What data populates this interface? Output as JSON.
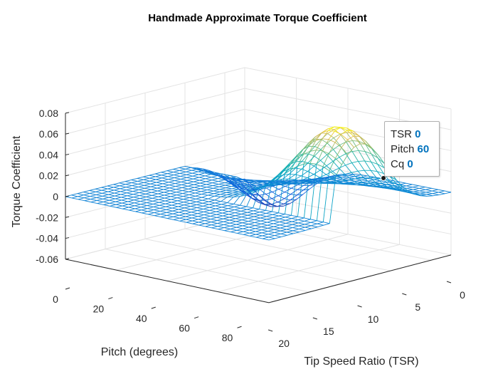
{
  "chart_data": {
    "type": "surface",
    "title": "Handmade Approximate Torque Coefficient",
    "xlabel": "Tip Speed Ratio (TSR)",
    "ylabel": "Pitch (degrees)",
    "zlabel": "Torque Coefficient",
    "x_ticks": [
      "0",
      "5",
      "10",
      "15",
      "20"
    ],
    "y_ticks": [
      "0",
      "20",
      "40",
      "60",
      "80"
    ],
    "z_ticks": [
      "-0.06",
      "-0.04",
      "-0.02",
      "0",
      "0.02",
      "0.04",
      "0.06",
      "0.08"
    ],
    "xlim": [
      0,
      20
    ],
    "ylim": [
      0,
      90
    ],
    "zlim": [
      -0.06,
      0.08
    ],
    "grid": true,
    "colormap": "parula",
    "surface_rows": {
      "tsr": [
        0,
        20
      ],
      "pitch": [
        0,
        90
      ],
      "max_cq_points": [
        {
          "pitch": 45,
          "tsr": 18,
          "cq": 0.08
        },
        {
          "pitch": 90,
          "tsr": 3,
          "cq": -0.046
        }
      ]
    },
    "datatip": {
      "rows": [
        {
          "label": "TSR",
          "value": "0"
        },
        {
          "label": "Pitch",
          "value": "60"
        },
        {
          "label": "Cq",
          "value": "0"
        }
      ],
      "point": {
        "tsr": 0,
        "pitch": 60,
        "cq": 0
      }
    }
  }
}
